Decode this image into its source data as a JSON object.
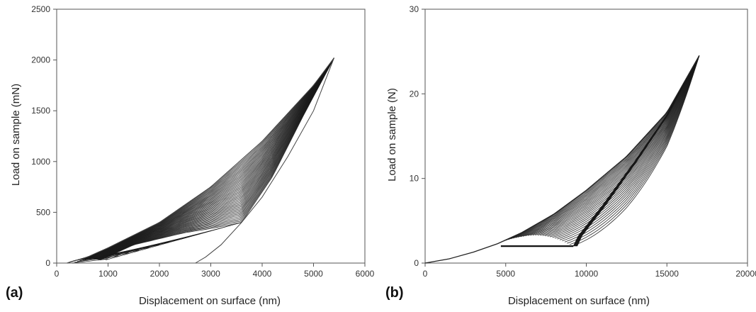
{
  "chart_data": [
    {
      "type": "line",
      "panel_label": "(a)",
      "xlabel": "Displacement on surface (nm)",
      "ylabel": "Load on sample (mN)",
      "xlim": [
        0,
        6000
      ],
      "ylim": [
        0,
        2500
      ],
      "x_ticks": [
        0,
        1000,
        2000,
        3000,
        4000,
        5000,
        6000
      ],
      "y_ticks": [
        0,
        500,
        1000,
        1500,
        2000,
        2500
      ],
      "x_tick_labels": [
        "0",
        "1000",
        "2000",
        "3000",
        "4000",
        "5000",
        "6000"
      ],
      "y_tick_labels": [
        "0",
        "500",
        "1000",
        "1500",
        "2000",
        "2500"
      ],
      "cycles": {
        "count": 40,
        "max_point": [
          5400,
          2020
        ],
        "first_loading": [
          [
            200,
            0
          ],
          [
            600,
            60
          ],
          [
            1000,
            150
          ],
          [
            2000,
            400
          ],
          [
            3000,
            750
          ],
          [
            4000,
            1200
          ],
          [
            5000,
            1750
          ],
          [
            5400,
            2020
          ]
        ],
        "last_loading": [
          [
            850,
            30
          ],
          [
            1500,
            180
          ],
          [
            2500,
            300
          ],
          [
            3000,
            340
          ],
          [
            3600,
            400
          ],
          [
            4200,
            850
          ],
          [
            4800,
            1450
          ],
          [
            5400,
            2020
          ]
        ],
        "final_unloading": [
          [
            5400,
            2020
          ],
          [
            5000,
            1500
          ],
          [
            4500,
            1050
          ],
          [
            4000,
            650
          ],
          [
            3600,
            400
          ],
          [
            3200,
            180
          ],
          [
            2900,
            60
          ],
          [
            2700,
            0
          ]
        ]
      },
      "grid": false,
      "legend": "none"
    },
    {
      "type": "line",
      "panel_label": "(b)",
      "xlabel": "Displacement on surface (nm)",
      "ylabel": "Load on sample (N)",
      "xlim": [
        0,
        20000
      ],
      "ylim": [
        0,
        30
      ],
      "x_ticks": [
        0,
        5000,
        10000,
        15000,
        20000
      ],
      "y_ticks": [
        0,
        10,
        20,
        30
      ],
      "x_tick_labels": [
        "0",
        "5000",
        "10000",
        "15000",
        "20000"
      ],
      "y_tick_labels": [
        "0",
        "10",
        "20",
        "30"
      ],
      "cycles": {
        "count": 30,
        "max_point": [
          17000,
          24.5
        ],
        "initial_loading": [
          [
            0,
            0
          ],
          [
            1500,
            0.5
          ],
          [
            3000,
            1.3
          ],
          [
            4500,
            2.3
          ],
          [
            6000,
            3.6
          ],
          [
            8000,
            5.8
          ],
          [
            10000,
            8.6
          ],
          [
            12500,
            12.6
          ],
          [
            15000,
            17.8
          ],
          [
            17000,
            24.5
          ]
        ],
        "first_unloading": [
          [
            17000,
            24.5
          ],
          [
            15000,
            17.5
          ],
          [
            13000,
            12.0
          ],
          [
            11000,
            6.8
          ],
          [
            9500,
            3.2
          ],
          [
            9200,
            2.0
          ]
        ],
        "lower_load_limit": 2.0,
        "first_reload_start": [
          4700,
          2.0
        ]
      },
      "grid": false,
      "legend": "none"
    }
  ]
}
